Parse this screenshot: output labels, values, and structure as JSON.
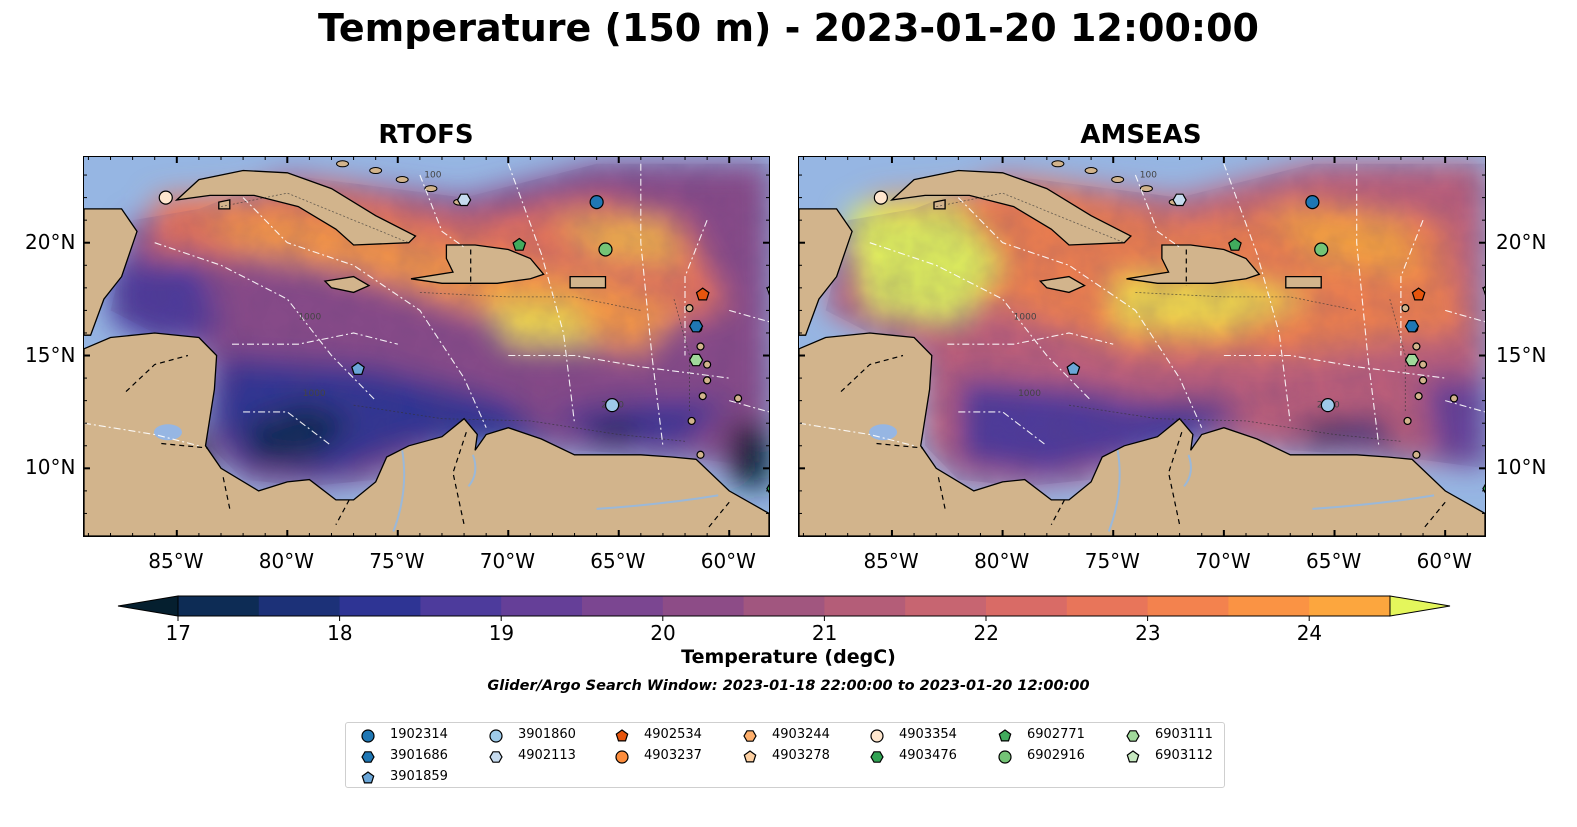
{
  "title": "Temperature (150 m) - 2023-01-20 12:00:00",
  "panels": [
    {
      "title": "RTOFS",
      "scheme": "rtofs"
    },
    {
      "title": "AMSEAS",
      "scheme": "amseas"
    }
  ],
  "lon_ticks": [
    "85°W",
    "80°W",
    "75°W",
    "70°W",
    "65°W",
    "60°W"
  ],
  "lat_ticks": [
    "20°N",
    "15°N",
    "10°N"
  ],
  "contour_labels": [
    "1000",
    "2000",
    "100"
  ],
  "colorbar": {
    "label": "Temperature (degC)",
    "ticks": [
      "17",
      "18",
      "19",
      "20",
      "21",
      "22",
      "23",
      "24"
    ],
    "range": [
      17,
      24.5
    ],
    "step": 0.5,
    "colors": [
      "#051f2f",
      "#0d2c55",
      "#1c3178",
      "#2e3494",
      "#4d3b9c",
      "#653f98",
      "#7b4691",
      "#8d4c87",
      "#a1567f",
      "#b45d78",
      "#c76571",
      "#d96b66",
      "#e8755a",
      "#f3824e",
      "#fa9344",
      "#fca63e",
      "#f8bf44",
      "#f4dd4b",
      "#e4f65c"
    ]
  },
  "search_window": "Glider/Argo Search Window: 2023-01-18 22:00:00 to 2023-01-20 12:00:00",
  "legend": [
    {
      "id": "1902314",
      "marker": "circle",
      "color": "#1f77b4"
    },
    {
      "id": "3901686",
      "marker": "hexagon",
      "color": "#1f77b4"
    },
    {
      "id": "3901859",
      "marker": "pentagon",
      "color": "#6aa6d8"
    },
    {
      "id": "3901860",
      "marker": "circle",
      "color": "#9ecae9"
    },
    {
      "id": "4902113",
      "marker": "hexagon",
      "color": "#c6dbef"
    },
    {
      "id": "4902534",
      "marker": "pentagon",
      "color": "#e6550d"
    },
    {
      "id": "4903237",
      "marker": "circle",
      "color": "#fd8d3c"
    },
    {
      "id": "4903244",
      "marker": "hexagon",
      "color": "#fdae6b"
    },
    {
      "id": "4903278",
      "marker": "pentagon",
      "color": "#fdd0a2"
    },
    {
      "id": "4903354",
      "marker": "circle",
      "color": "#fee6ce"
    },
    {
      "id": "4903476",
      "marker": "hexagon",
      "color": "#31a354"
    },
    {
      "id": "6902771",
      "marker": "pentagon",
      "color": "#41ab5d"
    },
    {
      "id": "6902916",
      "marker": "circle",
      "color": "#74c476"
    },
    {
      "id": "6903111",
      "marker": "hexagon",
      "color": "#a1d99b"
    },
    {
      "id": "6903112",
      "marker": "pentagon",
      "color": "#c7e9c0"
    }
  ],
  "floats_on_map": [
    {
      "id": "4903354",
      "lon": -85.5,
      "lat": 22.0
    },
    {
      "id": "1902314",
      "lon": -66.0,
      "lat": 21.8
    },
    {
      "id": "4902113",
      "lon": -72.0,
      "lat": 21.9
    },
    {
      "id": "6902771",
      "lon": -69.5,
      "lat": 19.9
    },
    {
      "id": "6902916",
      "lon": -65.6,
      "lat": 19.7
    },
    {
      "id": "4902534",
      "lon": -61.2,
      "lat": 17.7
    },
    {
      "id": "6903112",
      "lon": -58.0,
      "lat": 17.9
    },
    {
      "id": "3901686",
      "lon": -61.5,
      "lat": 16.3
    },
    {
      "id": "6903111",
      "lon": -61.5,
      "lat": 14.8
    },
    {
      "id": "3901859",
      "lon": -76.8,
      "lat": 14.4
    },
    {
      "id": "3901860",
      "lon": -65.3,
      "lat": 12.8
    },
    {
      "id": "4903476",
      "lon": -58.0,
      "lat": 9.1
    }
  ]
}
